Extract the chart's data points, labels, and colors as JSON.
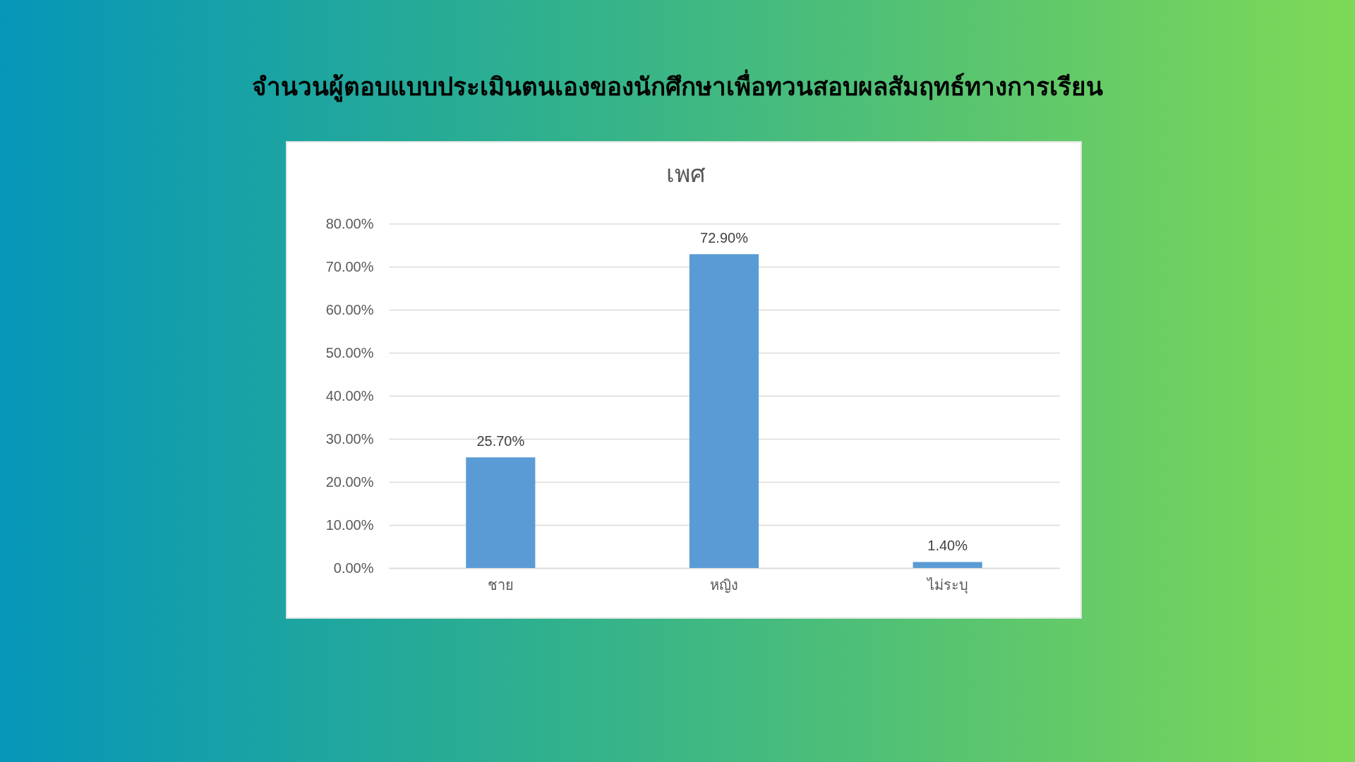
{
  "chart_data": {
    "type": "bar",
    "title": "จำนวนผู้ตอบแบบประเมินตนเองของนักศึกษาเพื่อทวนสอบผลสัมฤทธ์ทางการเรียน",
    "subtitle": "เพศ",
    "categories": [
      "ชาย",
      "หญิง",
      "ไม่ระบุ"
    ],
    "values": [
      25.7,
      72.9,
      1.4
    ],
    "value_labels": [
      "25.70%",
      "72.90%",
      "1.40%"
    ],
    "color": "#5b9bd5",
    "ylim": [
      0,
      80
    ],
    "yticks": [
      {
        "value": 0,
        "label": "0.00%"
      },
      {
        "value": 10,
        "label": "10.00%"
      },
      {
        "value": 20,
        "label": "20.00%"
      },
      {
        "value": 30,
        "label": "30.00%"
      },
      {
        "value": 40,
        "label": "40.00%"
      },
      {
        "value": 50,
        "label": "50.00%"
      },
      {
        "value": 60,
        "label": "60.00%"
      },
      {
        "value": 70,
        "label": "70.00%"
      },
      {
        "value": 80,
        "label": "80.00%"
      }
    ],
    "grid": "y"
  }
}
